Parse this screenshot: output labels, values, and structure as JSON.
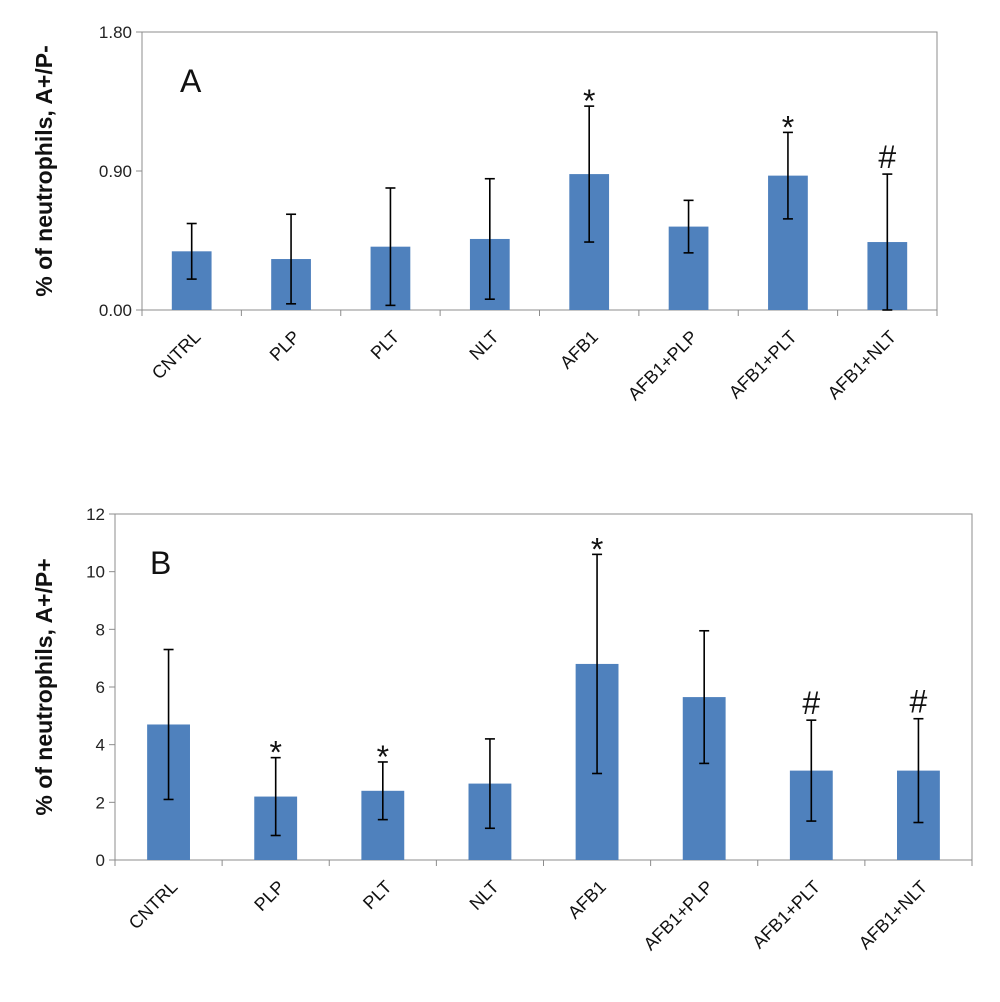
{
  "chart_data": [
    {
      "type": "bar",
      "panel_label": "A",
      "ylabel": "% of neutrophils, A+/P-",
      "ylim": [
        0,
        1.8
      ],
      "yticks": [
        "0.00",
        "0.90",
        "1.80"
      ],
      "categories": [
        "CNTRL",
        "PLP",
        "PLT",
        "NLT",
        "AFB1",
        "AFB1+PLP",
        "AFB1+PLT",
        "AFB1+NLT"
      ],
      "values": [
        0.38,
        0.33,
        0.41,
        0.46,
        0.88,
        0.54,
        0.87,
        0.44
      ],
      "error": [
        0.18,
        0.29,
        0.38,
        0.39,
        0.44,
        0.17,
        0.28,
        0.44
      ],
      "annotations": [
        "",
        "",
        "",
        "",
        "*",
        "",
        "*",
        "#"
      ],
      "bar_color": "#4f81bd",
      "grid": false
    },
    {
      "type": "bar",
      "panel_label": "B",
      "ylabel": "% of neutrophils, A+/P+",
      "ylim": [
        0,
        12
      ],
      "yticks": [
        "0",
        "2",
        "4",
        "6",
        "8",
        "10",
        "12"
      ],
      "categories": [
        "CNTRL",
        "PLP",
        "PLT",
        "NLT",
        "AFB1",
        "AFB1+PLP",
        "AFB1+PLT",
        "AFB1+NLT"
      ],
      "values": [
        4.7,
        2.2,
        2.4,
        2.65,
        6.8,
        5.65,
        3.1,
        3.1
      ],
      "error": [
        2.6,
        1.35,
        1.0,
        1.55,
        3.8,
        2.3,
        1.75,
        1.8
      ],
      "annotations": [
        "",
        "*",
        "*",
        "",
        "*",
        "",
        "#",
        "#"
      ],
      "bar_color": "#4f81bd",
      "grid": false
    }
  ]
}
